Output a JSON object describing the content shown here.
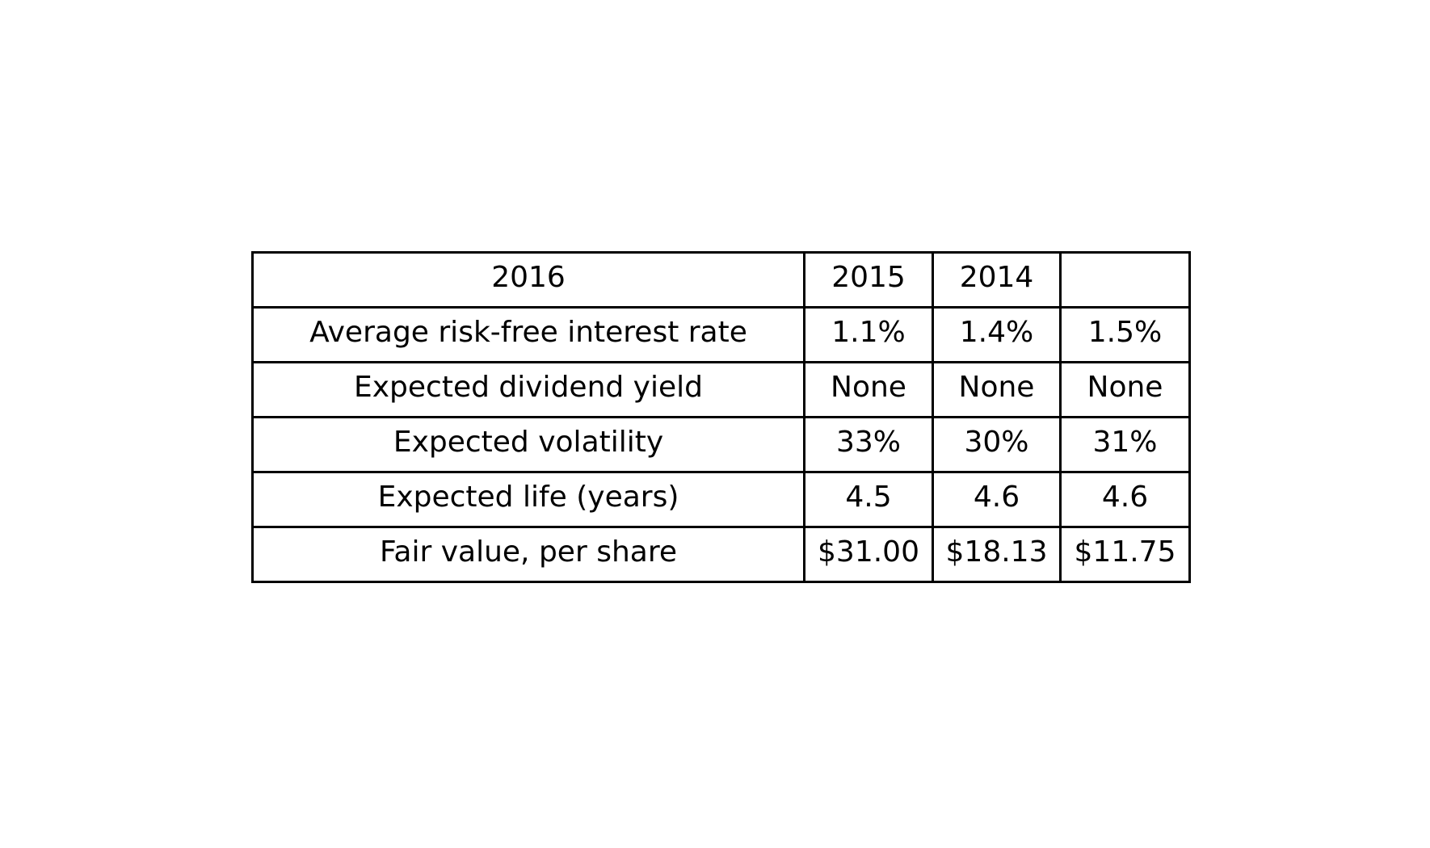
{
  "table": {
    "header": [
      "2016",
      "2015",
      "2014",
      ""
    ],
    "rows": [
      [
        "Average risk-free interest rate",
        "1.1%",
        "1.4%",
        "1.5%"
      ],
      [
        "Expected dividend yield",
        "None",
        "None",
        "None"
      ],
      [
        "Expected volatility",
        "33%",
        "30%",
        "31%"
      ],
      [
        "Expected life (years)",
        "4.5",
        "4.6",
        "4.6"
      ],
      [
        "Fair value, per share",
        "$31.00",
        "$18.13",
        "$11.75"
      ]
    ]
  }
}
